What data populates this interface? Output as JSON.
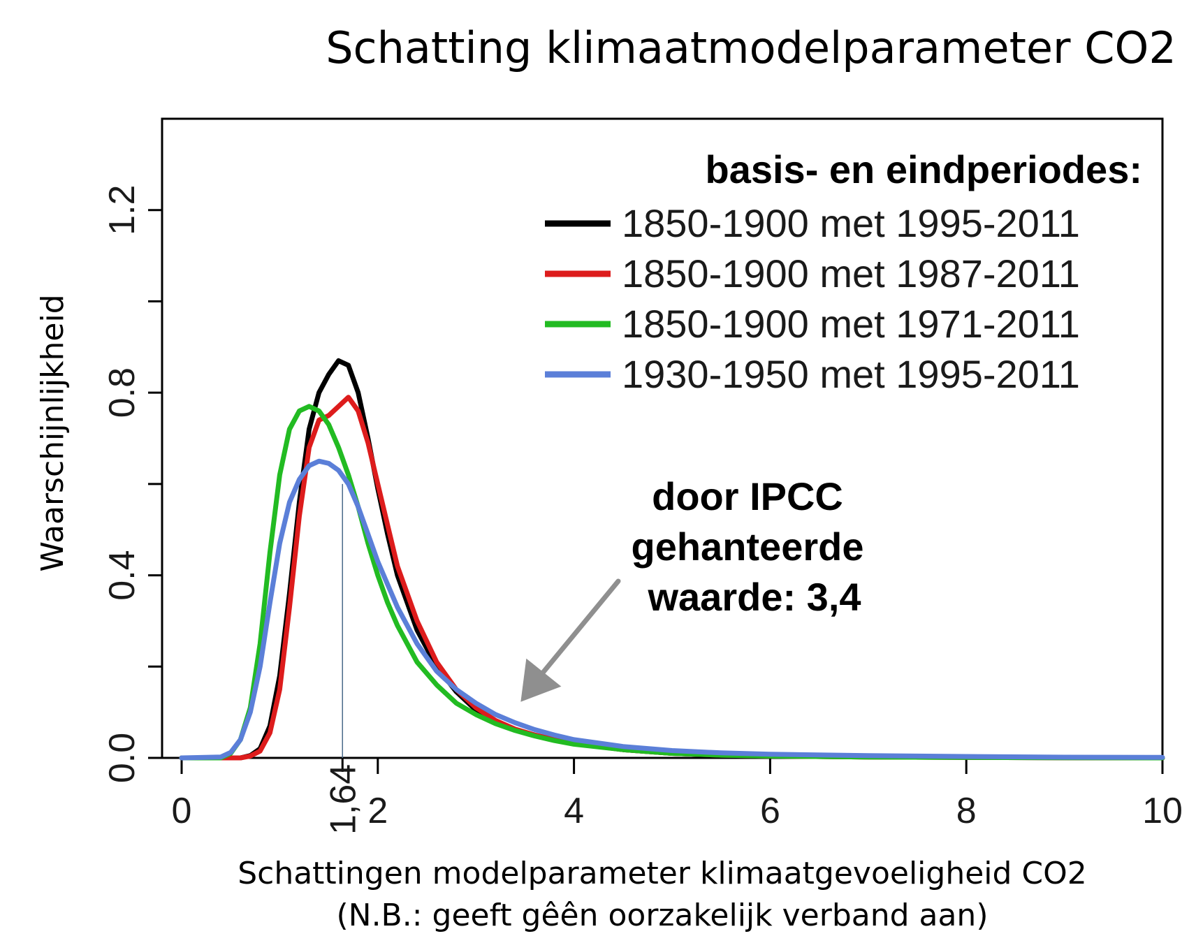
{
  "chart_data": {
    "type": "line",
    "title": "Schatting klimaatmodelparameter CO2",
    "xlabel": "Schattingen modelparameter klimaatgevoeligheid CO2",
    "xlabel_note": "(N.B.: geeft gêên oorzakelijk verband aan)",
    "ylabel": "Waarschijnlijkheid",
    "xlim": [
      0,
      10
    ],
    "ylim": [
      0,
      1.4
    ],
    "x_ticks": [
      "0",
      "2",
      "4",
      "6",
      "8",
      "10"
    ],
    "y_ticks": [
      "0.0",
      "0.4",
      "0.8",
      "1.2"
    ],
    "grid": false,
    "legend_position": "top-right",
    "legend_title": "basis- en eindperiodes:",
    "marker": {
      "x": 1.64,
      "label": "1,64"
    },
    "annotation": {
      "lines": [
        "door IPCC",
        "gehanteerde",
        "waarde: 3,4"
      ],
      "points_to_x": 3.4,
      "points_to_y": 0.08
    },
    "x": [
      0,
      0.4,
      0.5,
      0.6,
      0.7,
      0.8,
      0.9,
      1.0,
      1.1,
      1.2,
      1.3,
      1.4,
      1.5,
      1.6,
      1.7,
      1.8,
      1.9,
      2.0,
      2.1,
      2.2,
      2.4,
      2.6,
      2.8,
      3.0,
      3.2,
      3.4,
      3.6,
      3.8,
      4.0,
      4.5,
      5.0,
      5.5,
      6.0,
      7.0,
      8.0,
      9.0,
      10.0
    ],
    "series": [
      {
        "name": "1850-1900 met 1995-2011",
        "color": "#000000",
        "values": [
          0,
          0,
          0,
          0,
          0.005,
          0.02,
          0.07,
          0.18,
          0.36,
          0.56,
          0.72,
          0.8,
          0.84,
          0.87,
          0.86,
          0.8,
          0.7,
          0.59,
          0.49,
          0.4,
          0.28,
          0.2,
          0.145,
          0.105,
          0.08,
          0.062,
          0.05,
          0.04,
          0.032,
          0.018,
          0.01,
          0.006,
          0.004,
          0.002,
          0.001,
          0.0005,
          0
        ]
      },
      {
        "name": "1850-1900 met 1987-2011",
        "color": "#dd1c1c",
        "values": [
          0,
          0,
          0,
          0,
          0.004,
          0.015,
          0.055,
          0.15,
          0.33,
          0.53,
          0.68,
          0.74,
          0.75,
          0.77,
          0.79,
          0.76,
          0.69,
          0.6,
          0.51,
          0.42,
          0.3,
          0.21,
          0.15,
          0.11,
          0.082,
          0.063,
          0.05,
          0.04,
          0.032,
          0.018,
          0.01,
          0.006,
          0.004,
          0.002,
          0.001,
          0.0005,
          0
        ]
      },
      {
        "name": "1850-1900 met 1971-2011",
        "color": "#22bb22",
        "values": [
          0,
          0,
          0.01,
          0.04,
          0.11,
          0.25,
          0.45,
          0.62,
          0.72,
          0.76,
          0.77,
          0.76,
          0.73,
          0.68,
          0.62,
          0.55,
          0.47,
          0.4,
          0.34,
          0.29,
          0.21,
          0.16,
          0.12,
          0.095,
          0.075,
          0.06,
          0.048,
          0.038,
          0.03,
          0.018,
          0.01,
          0.006,
          0.004,
          0.002,
          0.001,
          0.0005,
          0
        ]
      },
      {
        "name": "1930-1950 met 1995-2011",
        "color": "#5b7fd8",
        "values": [
          0,
          0.002,
          0.012,
          0.04,
          0.1,
          0.2,
          0.34,
          0.47,
          0.56,
          0.61,
          0.64,
          0.65,
          0.645,
          0.63,
          0.6,
          0.55,
          0.49,
          0.43,
          0.38,
          0.33,
          0.25,
          0.19,
          0.15,
          0.12,
          0.095,
          0.077,
          0.062,
          0.05,
          0.04,
          0.025,
          0.016,
          0.011,
          0.008,
          0.005,
          0.003,
          0.0015,
          0.001
        ]
      }
    ]
  }
}
